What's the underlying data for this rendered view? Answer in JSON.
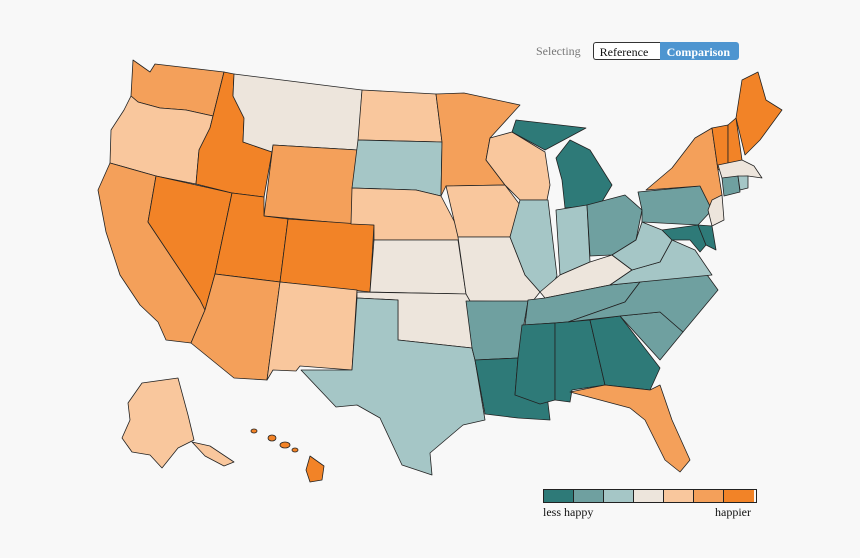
{
  "selector": {
    "label": "Selecting",
    "options": [
      "Reference",
      "Comparison"
    ],
    "selected": "Comparison",
    "active_color": "#4e95d0"
  },
  "legend": {
    "low_label": "less happy",
    "high_label": "happier",
    "colors": [
      "#2e7a78",
      "#6fa0a0",
      "#a5c6c6",
      "#ede5dc",
      "#f9c79d",
      "#f4a05a",
      "#f28327"
    ]
  },
  "states": {
    "WA": 5,
    "OR": 4,
    "CA": 5,
    "NV": 6,
    "ID": 6,
    "MT": 3,
    "WY": 5,
    "UT": 6,
    "CO": 6,
    "AZ": 5,
    "NM": 4,
    "ND": 4,
    "SD": 2,
    "NE": 4,
    "KS": 3,
    "OK": 3,
    "TX": 2,
    "MN": 5,
    "IA": 4,
    "MO": 3,
    "AR": 1,
    "LA": 0,
    "WI": 4,
    "IL": 2,
    "MI": 0,
    "IN": 2,
    "OH": 1,
    "KY": 3,
    "TN": 1,
    "MS": 0,
    "AL": 0,
    "GA": 0,
    "FL": 5,
    "SC": 1,
    "NC": 1,
    "VA": 2,
    "WV": 2,
    "PA": 1,
    "NY": 5,
    "VT": 6,
    "NH": 6,
    "ME": 6,
    "MA": 3,
    "CT": 1,
    "RI": 2,
    "NJ": 3,
    "DE": 0,
    "MD": 0,
    "AK": 4,
    "HI": 6
  }
}
